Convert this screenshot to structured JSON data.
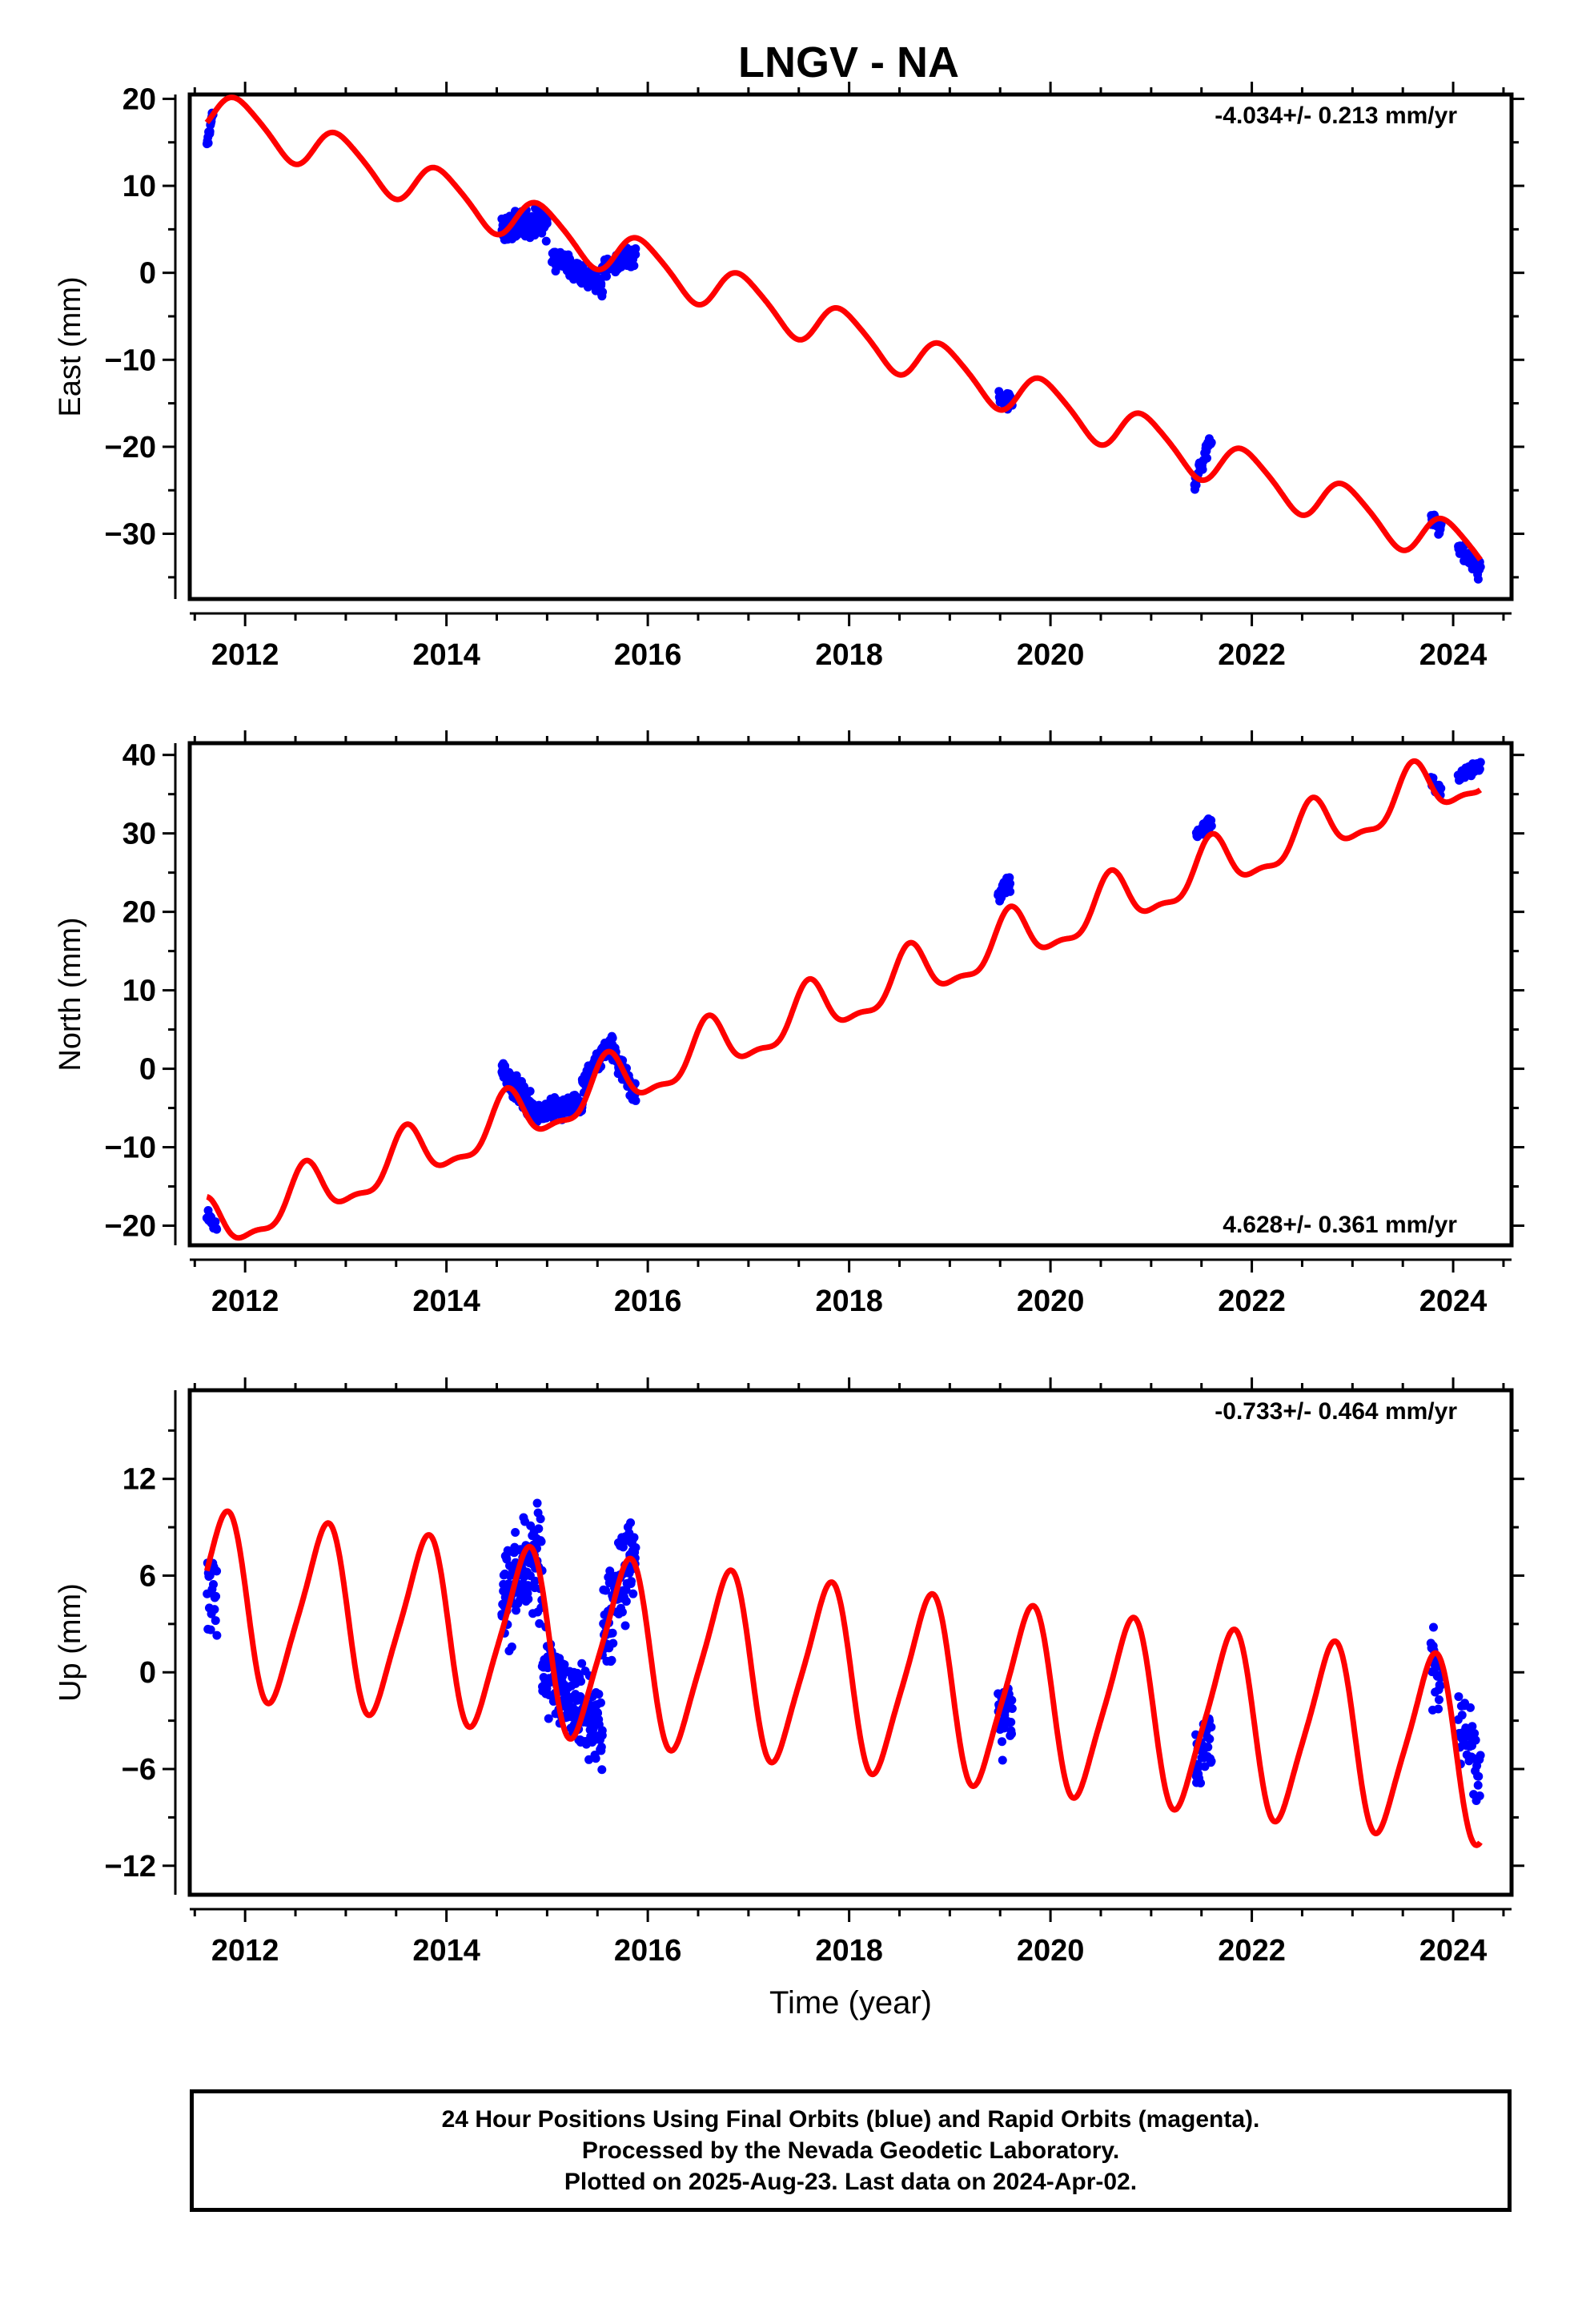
{
  "title": "LNGV - NA",
  "colors": {
    "final_orbits": "#0000ff",
    "model": "#ff0000"
  },
  "footer": {
    "line1": "24 Hour Positions Using Final Orbits (blue) and Rapid Orbits (magenta).",
    "line2": "Processed by the Nevada Geodetic Laboratory.",
    "line3": "Plotted on 2025-Aug-23. Last data on 2024-Apr-02."
  },
  "chart_data": [
    {
      "type": "scatter",
      "component": "east",
      "ylabel": "East (mm)",
      "xlabel": "",
      "xlim": [
        2011.45,
        2024.58
      ],
      "ylim": [
        -37.5,
        20.5
      ],
      "xticks": [
        2012,
        2014,
        2016,
        2018,
        2020,
        2022,
        2024
      ],
      "yticks": [
        20,
        10,
        0,
        -10,
        -20,
        -30
      ],
      "ytick_labels": [
        "20",
        "10",
        "0",
        "−10",
        "−20",
        "−30"
      ],
      "rate_label": "-4.034+/- 0.213 mm/yr",
      "rate_position": "top-right",
      "series": [
        {
          "kind": "points",
          "segments": [
            {
              "t0": 2011.62,
              "t1": 2011.68,
              "start": 14.5,
              "end": 18.5,
              "spread": 1.2,
              "n": 18
            },
            {
              "t0": 2014.55,
              "t1": 2015.0,
              "start": 5.0,
              "end": 6.0,
              "spread": 1.8,
              "n": 150
            },
            {
              "t0": 2015.05,
              "t1": 2015.55,
              "start": 2.0,
              "end": -1.5,
              "spread": 1.5,
              "n": 120
            },
            {
              "t0": 2015.55,
              "t1": 2015.88,
              "start": 0.5,
              "end": 1.8,
              "spread": 1.4,
              "n": 80
            },
            {
              "t0": 2019.49,
              "t1": 2019.62,
              "start": -14.5,
              "end": -15.0,
              "spread": 1.2,
              "n": 35
            },
            {
              "t0": 2021.43,
              "t1": 2021.6,
              "start": -24.0,
              "end": -19.0,
              "spread": 1.2,
              "n": 35
            },
            {
              "t0": 2023.78,
              "t1": 2023.88,
              "start": -28.0,
              "end": -29.5,
              "spread": 1.0,
              "n": 22
            },
            {
              "t0": 2024.05,
              "t1": 2024.27,
              "start": -31.5,
              "end": -34.5,
              "spread": 1.2,
              "n": 35
            }
          ]
        },
        {
          "kind": "model",
          "rate": -4.034,
          "value_2012": 17.2,
          "annual_amp": 2.5,
          "annual_peak": 2011.95,
          "semiannual_amp": 0.4,
          "semiannual_peak": 2012.3
        }
      ]
    },
    {
      "type": "scatter",
      "component": "north",
      "ylabel": "North (mm)",
      "xlabel": "",
      "xlim": [
        2011.45,
        2024.58
      ],
      "ylim": [
        -22.5,
        41.5
      ],
      "xticks": [
        2012,
        2014,
        2016,
        2018,
        2020,
        2022,
        2024
      ],
      "yticks": [
        40,
        30,
        20,
        10,
        0,
        -10,
        -20
      ],
      "ytick_labels": [
        "40",
        "30",
        "20",
        "10",
        "0",
        "−10",
        "−20"
      ],
      "rate_label": "4.628+/- 0.361 mm/yr",
      "rate_position": "bottom-right",
      "series": [
        {
          "kind": "points",
          "segments": [
            {
              "t0": 2011.62,
              "t1": 2011.72,
              "start": -18.5,
              "end": -20.5,
              "spread": 1.0,
              "n": 18
            },
            {
              "t0": 2014.55,
              "t1": 2014.85,
              "start": 0.0,
              "end": -5.0,
              "spread": 1.6,
              "n": 90
            },
            {
              "t0": 2014.85,
              "t1": 2015.35,
              "start": -5.5,
              "end": -4.5,
              "spread": 1.6,
              "n": 110
            },
            {
              "t0": 2015.35,
              "t1": 2015.65,
              "start": -2.0,
              "end": 4.0,
              "spread": 1.5,
              "n": 80
            },
            {
              "t0": 2015.65,
              "t1": 2015.88,
              "start": 2.5,
              "end": -3.5,
              "spread": 1.5,
              "n": 70
            },
            {
              "t0": 2019.48,
              "t1": 2019.6,
              "start": 22.0,
              "end": 24.0,
              "spread": 1.3,
              "n": 35
            },
            {
              "t0": 2021.45,
              "t1": 2021.6,
              "start": 30.0,
              "end": 31.5,
              "spread": 1.0,
              "n": 30
            },
            {
              "t0": 2023.78,
              "t1": 2023.88,
              "start": 37.0,
              "end": 35.5,
              "spread": 0.8,
              "n": 20
            },
            {
              "t0": 2024.05,
              "t1": 2024.27,
              "start": 37.0,
              "end": 39.0,
              "spread": 1.0,
              "n": 30
            }
          ]
        },
        {
          "kind": "model",
          "rate": 4.628,
          "value_2012": -19.0,
          "annual_amp": 3.3,
          "annual_peak": 2011.6,
          "semiannual_amp": 1.2,
          "semiannual_peak": 2011.6
        }
      ]
    },
    {
      "type": "scatter",
      "component": "up",
      "ylabel": "Up (mm)",
      "xlabel": "Time (year)",
      "xlim": [
        2011.45,
        2024.58
      ],
      "ylim": [
        -13.8,
        17.5
      ],
      "xticks": [
        2012,
        2014,
        2016,
        2018,
        2020,
        2022,
        2024
      ],
      "yticks": [
        12,
        6,
        0,
        -6,
        -12
      ],
      "ytick_labels": [
        "12",
        "6",
        "0",
        "−6",
        "−12"
      ],
      "rate_label": "-0.733+/- 0.464 mm/yr",
      "rate_position": "top-right",
      "series": [
        {
          "kind": "points",
          "segments": [
            {
              "t0": 2011.62,
              "t1": 2011.72,
              "start": 6.0,
              "end": 4.0,
              "spread": 3.5,
              "n": 20
            },
            {
              "t0": 2014.55,
              "t1": 2014.95,
              "start": 5.0,
              "end": 7.0,
              "spread": 3.5,
              "n": 120
            },
            {
              "t0": 2014.95,
              "t1": 2015.55,
              "start": 0.5,
              "end": -4.0,
              "spread": 3.0,
              "n": 170
            },
            {
              "t0": 2015.55,
              "t1": 2015.88,
              "start": 2.5,
              "end": 8.0,
              "spread": 3.5,
              "n": 90
            },
            {
              "t0": 2019.48,
              "t1": 2019.62,
              "start": -3.0,
              "end": -2.0,
              "spread": 2.5,
              "n": 40
            },
            {
              "t0": 2021.43,
              "t1": 2021.6,
              "start": -5.5,
              "end": -3.5,
              "spread": 2.3,
              "n": 40
            },
            {
              "t0": 2023.78,
              "t1": 2023.88,
              "start": 1.0,
              "end": -1.5,
              "spread": 3.0,
              "n": 25
            },
            {
              "t0": 2024.05,
              "t1": 2024.27,
              "start": -3.0,
              "end": -6.0,
              "spread": 2.8,
              "n": 40
            }
          ]
        },
        {
          "kind": "model",
          "rate": -0.733,
          "value_2012": 4.0,
          "annual_amp": 5.5,
          "annual_peak": 2011.78,
          "semiannual_amp": 1.0,
          "semiannual_peak": 2011.9
        }
      ]
    }
  ]
}
